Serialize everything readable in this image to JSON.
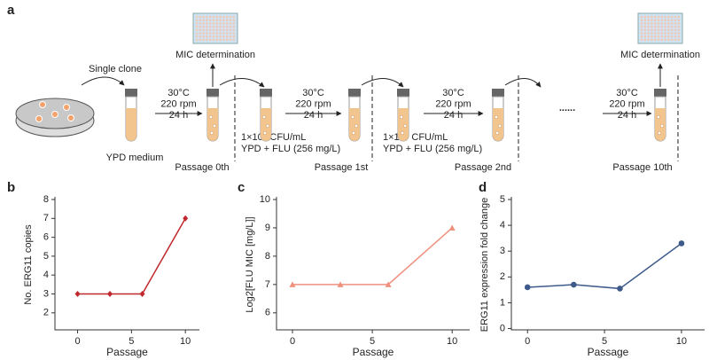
{
  "diagram": {
    "panel_label": "a",
    "single_clone": "Single clone",
    "ypd_medium": "YPD medium",
    "mic_labels": [
      "MIC determination",
      "MIC determination"
    ],
    "conditions": [
      [
        "30°C",
        "220 rpm",
        "24 h"
      ],
      [
        "30°C",
        "220 rpm",
        "24 h"
      ],
      [
        "30°C",
        "220 rpm",
        "24 h"
      ],
      [
        "30°C",
        "220 rpm",
        "24 h"
      ]
    ],
    "inoculum": [
      [
        "1×10⁵ CFU/mL",
        "YPD + FLU (256 mg/L)"
      ],
      [
        "1×10⁵ CFU/mL",
        "YPD + FLU (256 mg/L)"
      ]
    ],
    "passages": [
      "Passage 0th",
      "Passage 1st",
      "Passage 2nd",
      "Passage 10th"
    ],
    "ellipsis": "......"
  },
  "chart_data": [
    {
      "type": "line",
      "panel_label": "b",
      "xlabel": "Passage",
      "ylabel": "No. ERG11 copies",
      "x": [
        0,
        3,
        6,
        10
      ],
      "series": [
        {
          "color": "#c0282d",
          "marker": "diamond",
          "values": [
            3,
            3,
            3,
            7
          ]
        }
      ],
      "xlim": [
        -2.1,
        11.3
      ],
      "xticks": [
        0,
        5,
        10
      ],
      "ylim": [
        1.1,
        8
      ],
      "yticks": [
        2,
        3,
        4,
        5,
        6,
        7,
        8
      ]
    },
    {
      "type": "line",
      "panel_label": "c",
      "xlabel": "Passage",
      "ylabel": "Log2[FLU MIC [mg/L]]",
      "x": [
        0,
        3,
        6,
        10
      ],
      "series": [
        {
          "color": "#f0917e",
          "marker": "triangle",
          "values": [
            7,
            7,
            7,
            9
          ]
        }
      ],
      "xlim": [
        -1,
        11.1
      ],
      "xticks": [
        0,
        5,
        10
      ],
      "ylim": [
        5.4,
        10
      ],
      "yticks": [
        6,
        7,
        8,
        9,
        10
      ]
    },
    {
      "type": "line",
      "panel_label": "d",
      "xlabel": "Passage",
      "ylabel": "ERG11 expression fold change",
      "x": [
        0,
        3,
        6,
        10
      ],
      "series": [
        {
          "color": "#3d5a8a",
          "marker": "circle",
          "values": [
            1.6,
            1.7,
            1.55,
            3.3
          ]
        }
      ],
      "xlim": [
        -1.05,
        11.5
      ],
      "xticks": [
        0,
        5,
        10
      ],
      "ylim": [
        -0.05,
        5
      ],
      "yticks": [
        0,
        1,
        2,
        3,
        4,
        5
      ]
    }
  ]
}
